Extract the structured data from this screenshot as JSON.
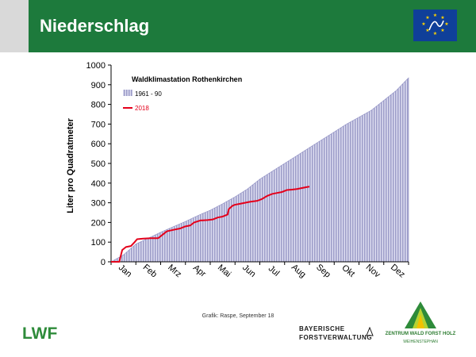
{
  "header": {
    "title": "Niederschlag"
  },
  "footer": {
    "credit": "Grafik: Raspe, September 18",
    "bayern_line1": "BAYERISCHE",
    "bayern_line2": "FORSTVERWALTUNG",
    "zentrum_line1": "ZENTRUM WALD FORST HOLZ",
    "zentrum_line2": "WEIHENSTEPHAN"
  },
  "logos": {
    "eu_flag": "eu-flag-life-logo",
    "lwf": "LWF",
    "zentrum": "zentrum-wald-forst-holz-logo"
  },
  "colors": {
    "header_green": "#1d7a3c",
    "area_fill": "#b4b4dc",
    "line_2018": "#e4001b"
  },
  "chart_data": {
    "type": "area",
    "title": "Waldklimastation Rothenkirchen",
    "ylabel": "Liter pro Quadratmeter",
    "xlabel": "",
    "ylim": [
      0,
      1000
    ],
    "yticks": [
      0,
      100,
      200,
      300,
      400,
      500,
      600,
      700,
      800,
      900,
      1000
    ],
    "xlim": [
      0,
      12
    ],
    "categories": [
      "Jan",
      "Feb",
      "Mrz",
      "Apr",
      "Mai",
      "Jun",
      "Jul",
      "Aug",
      "Sep",
      "Okt",
      "Nov",
      "Dez"
    ],
    "grid": false,
    "legend_position": "top-left",
    "series": [
      {
        "name": "1961 - 90",
        "type": "area",
        "x": [
          0,
          0.5,
          1,
          1.5,
          2,
          2.5,
          3,
          3.5,
          4,
          4.5,
          5,
          5.5,
          6,
          6.5,
          7,
          7.5,
          8,
          8.5,
          9,
          9.5,
          10,
          10.5,
          11,
          11.5,
          12
        ],
        "values": [
          0,
          35,
          90,
          120,
          150,
          178,
          205,
          235,
          262,
          295,
          330,
          370,
          420,
          460,
          500,
          540,
          580,
          620,
          660,
          700,
          735,
          770,
          820,
          870,
          935
        ]
      },
      {
        "name": "2018",
        "type": "line",
        "x": [
          0,
          0.33,
          0.45,
          0.6,
          0.8,
          0.95,
          1.05,
          1.3,
          1.6,
          1.9,
          2.1,
          2.25,
          2.5,
          2.8,
          3.0,
          3.2,
          3.35,
          3.6,
          3.9,
          4.1,
          4.3,
          4.5,
          4.7,
          4.75,
          4.9,
          5.0,
          5.2,
          5.4,
          5.6,
          5.9,
          6.1,
          6.3,
          6.5,
          6.7,
          6.9,
          7.1,
          7.3,
          7.5,
          7.7,
          7.9,
          8.0
        ],
        "values": [
          0,
          0,
          60,
          75,
          80,
          100,
          115,
          118,
          120,
          120,
          140,
          155,
          162,
          170,
          180,
          185,
          200,
          210,
          212,
          215,
          225,
          230,
          240,
          268,
          285,
          290,
          295,
          300,
          305,
          310,
          320,
          335,
          345,
          350,
          355,
          365,
          367,
          370,
          375,
          380,
          382
        ]
      }
    ]
  }
}
